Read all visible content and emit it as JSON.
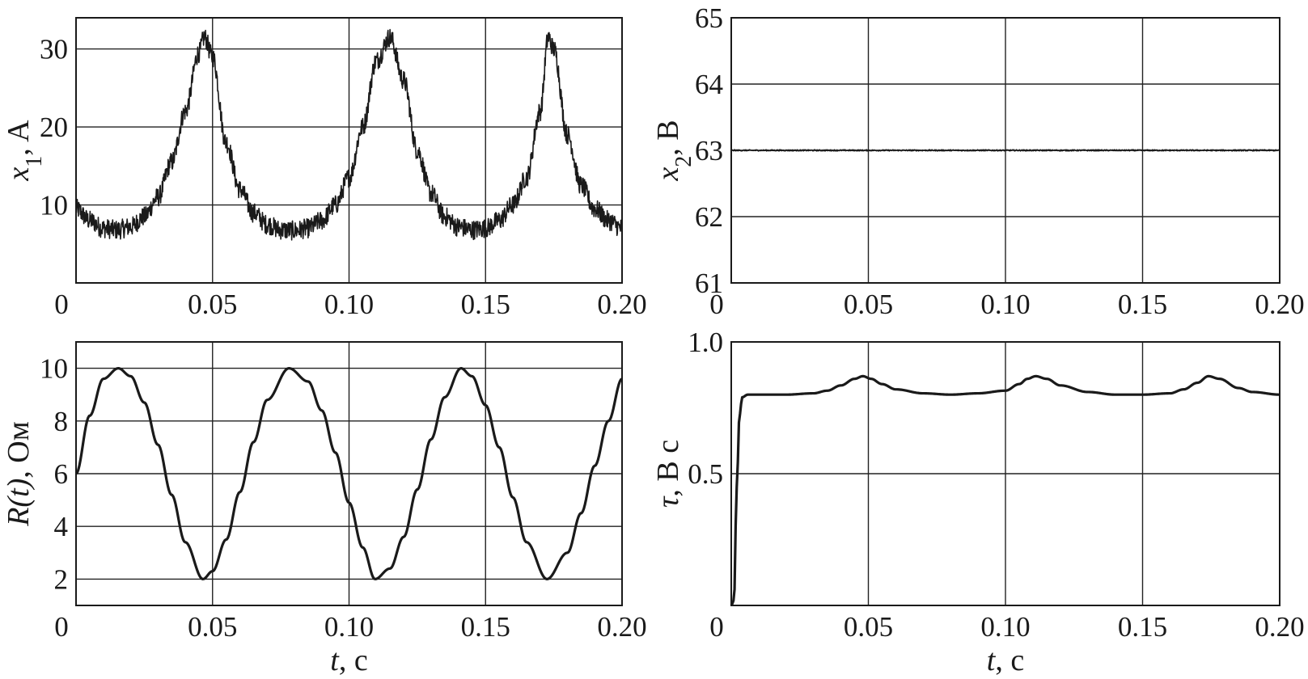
{
  "chart_data": [
    {
      "type": "line",
      "ylabel": {
        "sym": "x",
        "sub": "1",
        "unit": ", A"
      },
      "xlabel": "",
      "xlim": [
        0,
        0.2
      ],
      "ylim": [
        0,
        34
      ],
      "xticks": [
        0,
        0.05,
        0.1,
        0.15,
        0.2
      ],
      "xtick_labels": [
        "0",
        "0.05",
        "0.10",
        "0.15",
        "0.20"
      ],
      "yticks": [
        10,
        20,
        30
      ],
      "ytick_labels": [
        "10",
        "20",
        "30"
      ],
      "grid": true,
      "series": [
        {
          "x": [
            0,
            0.005,
            0.01,
            0.015,
            0.02,
            0.025,
            0.03,
            0.035,
            0.04,
            0.045,
            0.047,
            0.05,
            0.055,
            0.06,
            0.065,
            0.07,
            0.075,
            0.08,
            0.085,
            0.09,
            0.095,
            0.1,
            0.105,
            0.11,
            0.115,
            0.12,
            0.125,
            0.13,
            0.135,
            0.14,
            0.145,
            0.15,
            0.155,
            0.16,
            0.165,
            0.17,
            0.173,
            0.175,
            0.18,
            0.185,
            0.19,
            0.195,
            0.2
          ],
          "values": [
            9.5,
            8.0,
            7.0,
            6.8,
            7.2,
            8.5,
            11.0,
            15.5,
            22.0,
            29.5,
            31.5,
            29.0,
            18.0,
            12.0,
            9.0,
            7.5,
            6.8,
            6.7,
            7.0,
            8.0,
            10.0,
            13.5,
            20.0,
            28.5,
            31.5,
            26.0,
            17.0,
            11.5,
            8.5,
            7.2,
            6.8,
            7.0,
            8.0,
            10.0,
            13.5,
            22.0,
            31.5,
            30.0,
            19.0,
            12.5,
            9.5,
            8.0,
            7.0
          ],
          "noise": 2.5
        }
      ]
    },
    {
      "type": "line",
      "ylabel": {
        "sym": "x",
        "sub": "2",
        "unit": ", В"
      },
      "xlabel": "",
      "xlim": [
        0,
        0.2
      ],
      "ylim": [
        61,
        65
      ],
      "xticks": [
        0,
        0.05,
        0.1,
        0.15,
        0.2
      ],
      "xtick_labels": [
        "0",
        "0.05",
        "0.10",
        "0.15",
        "0.20"
      ],
      "yticks": [
        61,
        62,
        63,
        64,
        65
      ],
      "ytick_labels": [
        "61",
        "62",
        "63",
        "64",
        "65"
      ],
      "grid": true,
      "series": [
        {
          "x": [
            0,
            0.2
          ],
          "values": [
            63,
            63
          ],
          "noise": 0.02
        }
      ]
    },
    {
      "type": "line",
      "ylabel": {
        "sym": "R(t)",
        "sub": "",
        "unit": ", Ом"
      },
      "xlabel": "t, с",
      "xlim": [
        0,
        0.2
      ],
      "ylim": [
        1,
        11
      ],
      "xticks": [
        0,
        0.05,
        0.1,
        0.15,
        0.2
      ],
      "xtick_labels": [
        "0",
        "0.05",
        "0.10",
        "0.15",
        "0.20"
      ],
      "yticks": [
        2,
        4,
        6,
        8,
        10
      ],
      "ytick_labels": [
        "2",
        "4",
        "6",
        "8",
        "10"
      ],
      "grid": true,
      "series": [
        {
          "x": [
            0,
            0.005,
            0.01,
            0.0155,
            0.02,
            0.025,
            0.03,
            0.035,
            0.04,
            0.0465,
            0.05,
            0.055,
            0.06,
            0.065,
            0.07,
            0.078,
            0.085,
            0.09,
            0.095,
            0.1,
            0.105,
            0.1095,
            0.115,
            0.12,
            0.125,
            0.13,
            0.135,
            0.141,
            0.145,
            0.15,
            0.155,
            0.16,
            0.165,
            0.1725,
            0.18,
            0.185,
            0.19,
            0.195,
            0.2
          ],
          "values": [
            6.0,
            8.2,
            9.6,
            10.0,
            9.7,
            8.7,
            7.1,
            5.2,
            3.4,
            2.0,
            2.3,
            3.5,
            5.3,
            7.2,
            8.8,
            10.0,
            9.5,
            8.4,
            6.8,
            4.9,
            3.2,
            2.0,
            2.4,
            3.6,
            5.4,
            7.3,
            8.9,
            10.0,
            9.7,
            8.6,
            7.0,
            5.1,
            3.4,
            2.0,
            3.0,
            4.5,
            6.3,
            8.0,
            9.6
          ]
        }
      ]
    },
    {
      "type": "line",
      "ylabel": {
        "sym": "τ",
        "sub": "",
        "unit": ", В с"
      },
      "xlabel": "t, с",
      "xlim": [
        0,
        0.2
      ],
      "ylim": [
        0,
        1.0
      ],
      "xticks": [
        0,
        0.05,
        0.1,
        0.15,
        0.2
      ],
      "xtick_labels": [
        "0",
        "0.05",
        "0.10",
        "0.15",
        "0.20"
      ],
      "yticks": [
        0.5,
        1.0
      ],
      "ytick_labels": [
        "0.5",
        "1.0"
      ],
      "grid": true,
      "series": [
        {
          "x": [
            0,
            0.001,
            0.002,
            0.003,
            0.004,
            0.006,
            0.01,
            0.02,
            0.03,
            0.035,
            0.04,
            0.045,
            0.048,
            0.051,
            0.055,
            0.06,
            0.07,
            0.08,
            0.09,
            0.1,
            0.105,
            0.108,
            0.111,
            0.115,
            0.12,
            0.13,
            0.14,
            0.15,
            0.16,
            0.165,
            0.17,
            0.174,
            0.178,
            0.185,
            0.19,
            0.2
          ],
          "values": [
            0.0,
            0.02,
            0.45,
            0.72,
            0.79,
            0.8,
            0.8,
            0.8,
            0.805,
            0.815,
            0.835,
            0.86,
            0.87,
            0.86,
            0.84,
            0.82,
            0.805,
            0.8,
            0.805,
            0.815,
            0.84,
            0.86,
            0.87,
            0.86,
            0.835,
            0.81,
            0.8,
            0.8,
            0.805,
            0.82,
            0.845,
            0.87,
            0.86,
            0.825,
            0.81,
            0.8
          ]
        }
      ]
    }
  ]
}
